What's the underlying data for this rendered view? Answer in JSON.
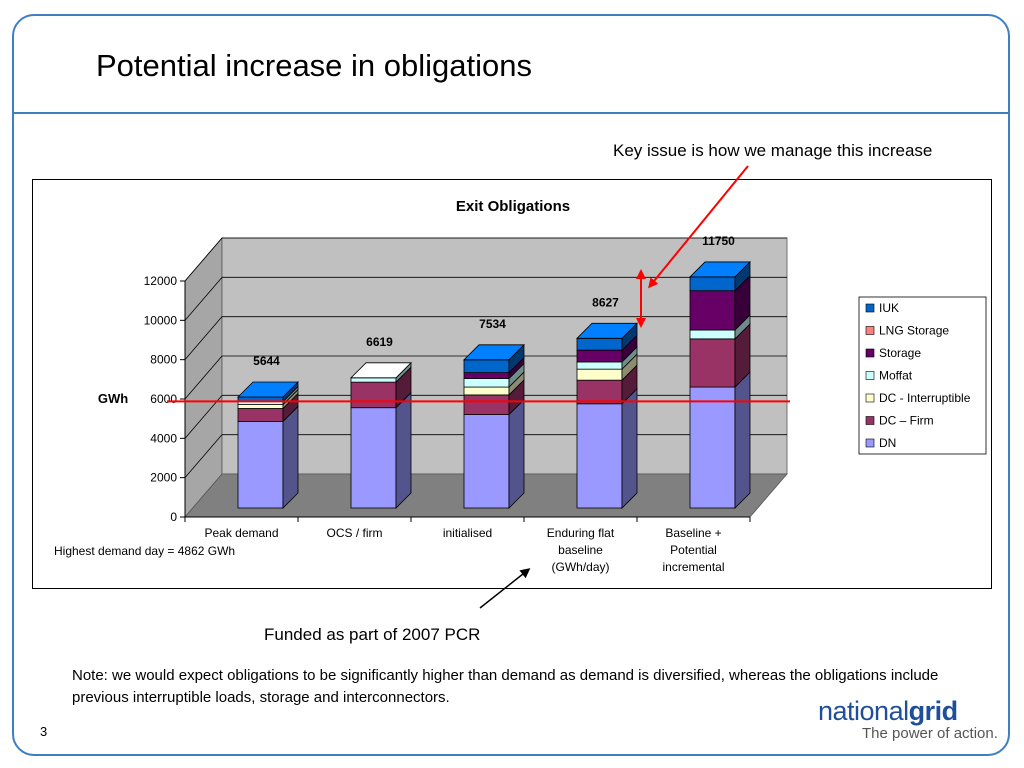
{
  "slide": {
    "title": "Potential increase in obligations",
    "page_number": "3",
    "annotation_top": "Key issue is how we manage this increase",
    "annotation_bottom": "Funded as part of 2007 PCR",
    "note": "Note: we would expect obligations to be significantly higher than demand as demand is diversified, whereas the obligations include previous interruptible loads, storage and interconnectors.",
    "logo": {
      "part1": "national",
      "part2": "grid",
      "tagline": "The power of action."
    }
  },
  "chart_data": {
    "type": "bar",
    "stacked": true,
    "three_d": true,
    "title": "Exit Obligations",
    "ylabel": "GWh",
    "ylim": [
      0,
      12000
    ],
    "yticks": [
      0,
      2000,
      4000,
      6000,
      8000,
      10000,
      12000
    ],
    "categories": [
      [
        "Peak demand"
      ],
      [
        "OCS / firm"
      ],
      [
        "initialised"
      ],
      [
        "Enduring flat",
        "baseline",
        "(GWh/day)"
      ],
      [
        "Baseline +",
        "Potential",
        "incremental"
      ]
    ],
    "extra_label": "Highest demand day = 4862 GWh",
    "totals": [
      5644,
      6619,
      7534,
      8627,
      11750
    ],
    "reference_line": {
      "value": 4862,
      "color": "#ff0000"
    },
    "legend_position": "right",
    "series": [
      {
        "name": "DN",
        "color": "#9999ff",
        "values": [
          4400,
          5100,
          4750,
          5300,
          6150
        ]
      },
      {
        "name": "DC – Firm",
        "color": "#993366",
        "values": [
          660,
          1300,
          1000,
          1200,
          2450
        ]
      },
      {
        "name": "DC - Interruptible",
        "color": "#ffffcc",
        "values": [
          200,
          0,
          400,
          560,
          0
        ]
      },
      {
        "name": "Moffat",
        "color": "#ccffff",
        "values": [
          150,
          219,
          434,
          367,
          450
        ]
      },
      {
        "name": "Storage",
        "color": "#660066",
        "values": [
          0,
          0,
          300,
          600,
          2000
        ]
      },
      {
        "name": "LNG Storage",
        "color": "#ff8080",
        "values": [
          0,
          0,
          0,
          0,
          0
        ]
      },
      {
        "name": "IUK",
        "color": "#0066cc",
        "values": [
          234,
          0,
          650,
          600,
          700
        ]
      }
    ]
  }
}
